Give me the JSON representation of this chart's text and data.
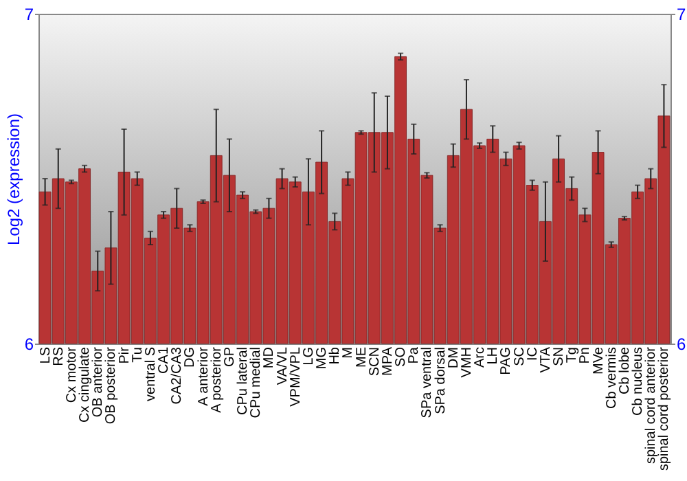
{
  "chart_data": {
    "type": "bar",
    "ylabel": "Log2 (expression)",
    "categories": [
      "LS",
      "RS",
      "Cx motor",
      "Cx cingulate",
      "OB anterior",
      "OB posterior",
      "Pir",
      "Tu",
      "ventral S",
      "CA1",
      "CA2/CA3",
      "DG",
      "A anterior",
      "A posterior",
      "GP",
      "CPu lateral",
      "CPu medial",
      "MD",
      "VA/VL",
      "VPM/VPL",
      "LG",
      "MG",
      "Hb",
      "M",
      "ME",
      "SCN",
      "MPA",
      "SO",
      "Pa",
      "SPa ventral",
      "SPa dorsal",
      "DM",
      "VMH",
      "Arc",
      "LH",
      "PAG",
      "SC",
      "IC",
      "VTA",
      "SN",
      "Tg",
      "Pn",
      "MVe",
      "Cb vermis",
      "Cb lobe",
      "Cb nucleus",
      "spinal cord anterior",
      "spinal cord posterior"
    ],
    "values": [
      6.46,
      6.5,
      6.49,
      6.53,
      6.22,
      6.29,
      6.52,
      6.5,
      6.32,
      6.39,
      6.41,
      6.35,
      6.43,
      6.57,
      6.51,
      6.45,
      6.4,
      6.41,
      6.5,
      6.49,
      6.46,
      6.55,
      6.37,
      6.5,
      6.64,
      6.64,
      6.64,
      6.87,
      6.62,
      6.51,
      6.35,
      6.57,
      6.71,
      6.6,
      6.62,
      6.56,
      6.6,
      6.48,
      6.37,
      6.56,
      6.47,
      6.39,
      6.58,
      6.3,
      6.38,
      6.46,
      6.5,
      6.69
    ],
    "errors": [
      0.04,
      0.09,
      0.005,
      0.01,
      0.06,
      0.11,
      0.13,
      0.02,
      0.02,
      0.01,
      0.06,
      0.01,
      0.005,
      0.14,
      0.11,
      0.01,
      0.005,
      0.03,
      0.03,
      0.015,
      0.1,
      0.095,
      0.025,
      0.02,
      0.005,
      0.12,
      0.11,
      0.01,
      0.045,
      0.008,
      0.01,
      0.035,
      0.09,
      0.008,
      0.04,
      0.02,
      0.01,
      0.015,
      0.12,
      0.07,
      0.035,
      0.02,
      0.065,
      0.008,
      0.005,
      0.02,
      0.03,
      0.095
    ],
    "color": "#b83434",
    "ylim": [
      6,
      7
    ],
    "yticks": [
      6,
      7
    ],
    "y2lim": [
      6,
      7
    ],
    "y2ticks": [
      6,
      7
    ]
  }
}
